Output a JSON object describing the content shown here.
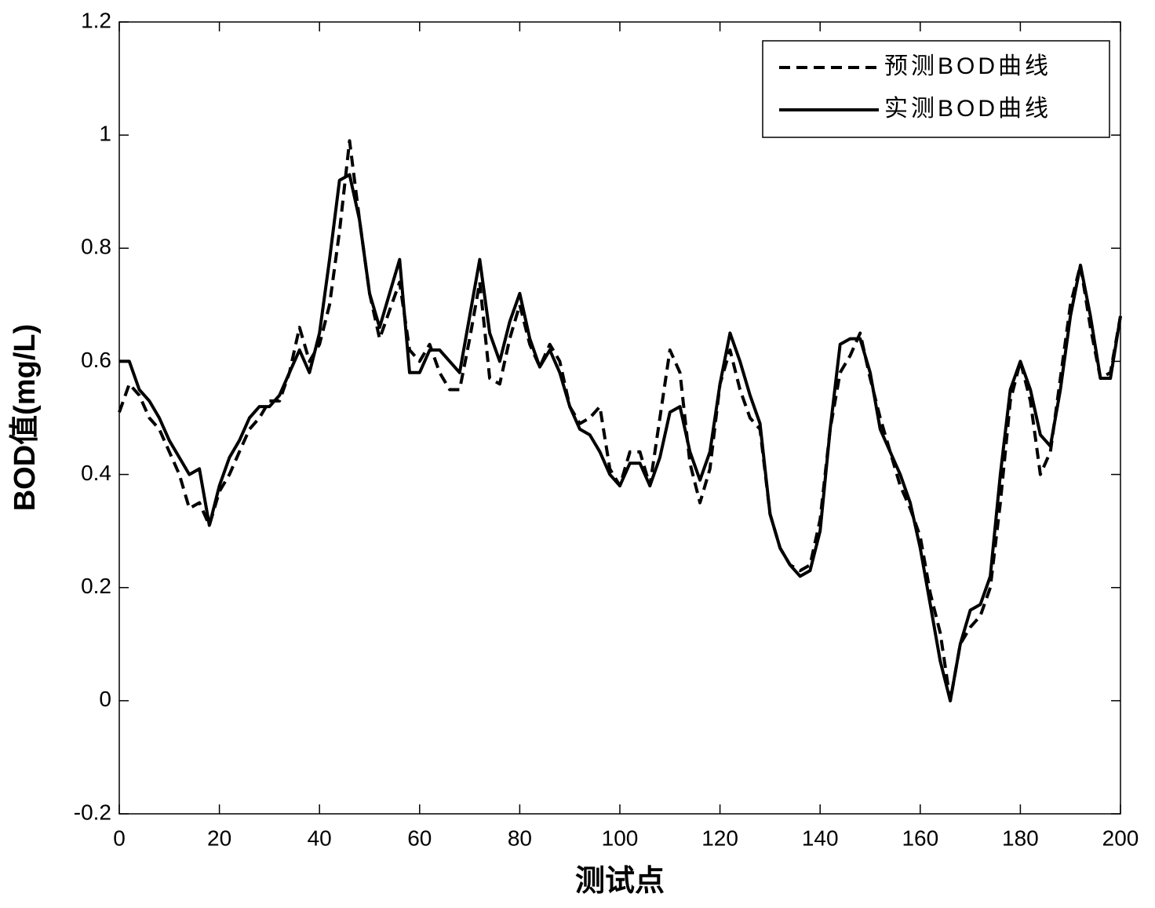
{
  "chart_data": {
    "type": "line",
    "xlabel": "测试点",
    "ylabel": "BOD值(mg/L)",
    "xlim": [
      0,
      200
    ],
    "ylim": [
      -0.2,
      1.2
    ],
    "xticks": [
      0,
      20,
      40,
      60,
      80,
      100,
      120,
      140,
      160,
      180,
      200
    ],
    "yticks": [
      -0.2,
      0,
      0.2,
      0.4,
      0.6,
      0.8,
      1,
      1.2
    ],
    "grid": false,
    "legend": "upper right",
    "x": [
      0,
      2,
      4,
      6,
      8,
      10,
      12,
      14,
      16,
      18,
      20,
      22,
      24,
      26,
      28,
      30,
      32,
      34,
      36,
      38,
      40,
      42,
      44,
      46,
      48,
      50,
      52,
      54,
      56,
      58,
      60,
      62,
      64,
      66,
      68,
      70,
      72,
      74,
      76,
      78,
      80,
      82,
      84,
      86,
      88,
      90,
      92,
      94,
      96,
      98,
      100,
      102,
      104,
      106,
      108,
      110,
      112,
      114,
      116,
      118,
      120,
      122,
      124,
      126,
      128,
      130,
      132,
      134,
      136,
      138,
      140,
      142,
      144,
      146,
      148,
      150,
      152,
      154,
      156,
      158,
      160,
      162,
      164,
      166,
      168,
      170,
      172,
      174,
      176,
      178,
      180,
      182,
      184,
      186,
      188,
      190,
      192,
      194,
      196,
      198,
      200
    ],
    "series": [
      {
        "name": "预测BOD曲线",
        "color": "#000000",
        "dash": true,
        "values": [
          0.51,
          0.56,
          0.54,
          0.5,
          0.48,
          0.44,
          0.4,
          0.34,
          0.35,
          0.31,
          0.37,
          0.4,
          0.44,
          0.48,
          0.5,
          0.53,
          0.53,
          0.58,
          0.66,
          0.6,
          0.63,
          0.7,
          0.83,
          0.99,
          0.85,
          0.72,
          0.64,
          0.69,
          0.74,
          0.62,
          0.6,
          0.63,
          0.58,
          0.55,
          0.55,
          0.64,
          0.74,
          0.57,
          0.56,
          0.64,
          0.7,
          0.63,
          0.59,
          0.63,
          0.6,
          0.52,
          0.49,
          0.5,
          0.52,
          0.41,
          0.38,
          0.44,
          0.44,
          0.38,
          0.5,
          0.62,
          0.58,
          0.42,
          0.35,
          0.41,
          0.56,
          0.62,
          0.55,
          0.5,
          0.48,
          0.33,
          0.27,
          0.24,
          0.23,
          0.24,
          0.32,
          0.48,
          0.58,
          0.61,
          0.65,
          0.57,
          0.5,
          0.44,
          0.38,
          0.34,
          0.29,
          0.19,
          0.12,
          0.0,
          0.1,
          0.13,
          0.15,
          0.2,
          0.35,
          0.53,
          0.6,
          0.53,
          0.4,
          0.44,
          0.57,
          0.7,
          0.77,
          0.66,
          0.57,
          0.58,
          0.68
        ]
      },
      {
        "name": "实测BOD曲线",
        "color": "#000000",
        "dash": false,
        "values": [
          0.6,
          0.6,
          0.55,
          0.53,
          0.5,
          0.46,
          0.43,
          0.4,
          0.41,
          0.31,
          0.38,
          0.43,
          0.46,
          0.5,
          0.52,
          0.52,
          0.54,
          0.58,
          0.62,
          0.58,
          0.65,
          0.78,
          0.92,
          0.93,
          0.85,
          0.72,
          0.66,
          0.72,
          0.78,
          0.58,
          0.58,
          0.62,
          0.62,
          0.6,
          0.58,
          0.68,
          0.78,
          0.65,
          0.6,
          0.67,
          0.72,
          0.64,
          0.59,
          0.62,
          0.58,
          0.52,
          0.48,
          0.47,
          0.44,
          0.4,
          0.38,
          0.42,
          0.42,
          0.38,
          0.43,
          0.51,
          0.52,
          0.44,
          0.39,
          0.44,
          0.56,
          0.65,
          0.6,
          0.54,
          0.49,
          0.33,
          0.27,
          0.24,
          0.22,
          0.23,
          0.3,
          0.48,
          0.63,
          0.64,
          0.64,
          0.58,
          0.48,
          0.44,
          0.4,
          0.35,
          0.27,
          0.17,
          0.07,
          0.0,
          0.1,
          0.16,
          0.17,
          0.22,
          0.4,
          0.55,
          0.6,
          0.55,
          0.47,
          0.45,
          0.55,
          0.68,
          0.77,
          0.68,
          0.57,
          0.57,
          0.68
        ]
      }
    ]
  }
}
